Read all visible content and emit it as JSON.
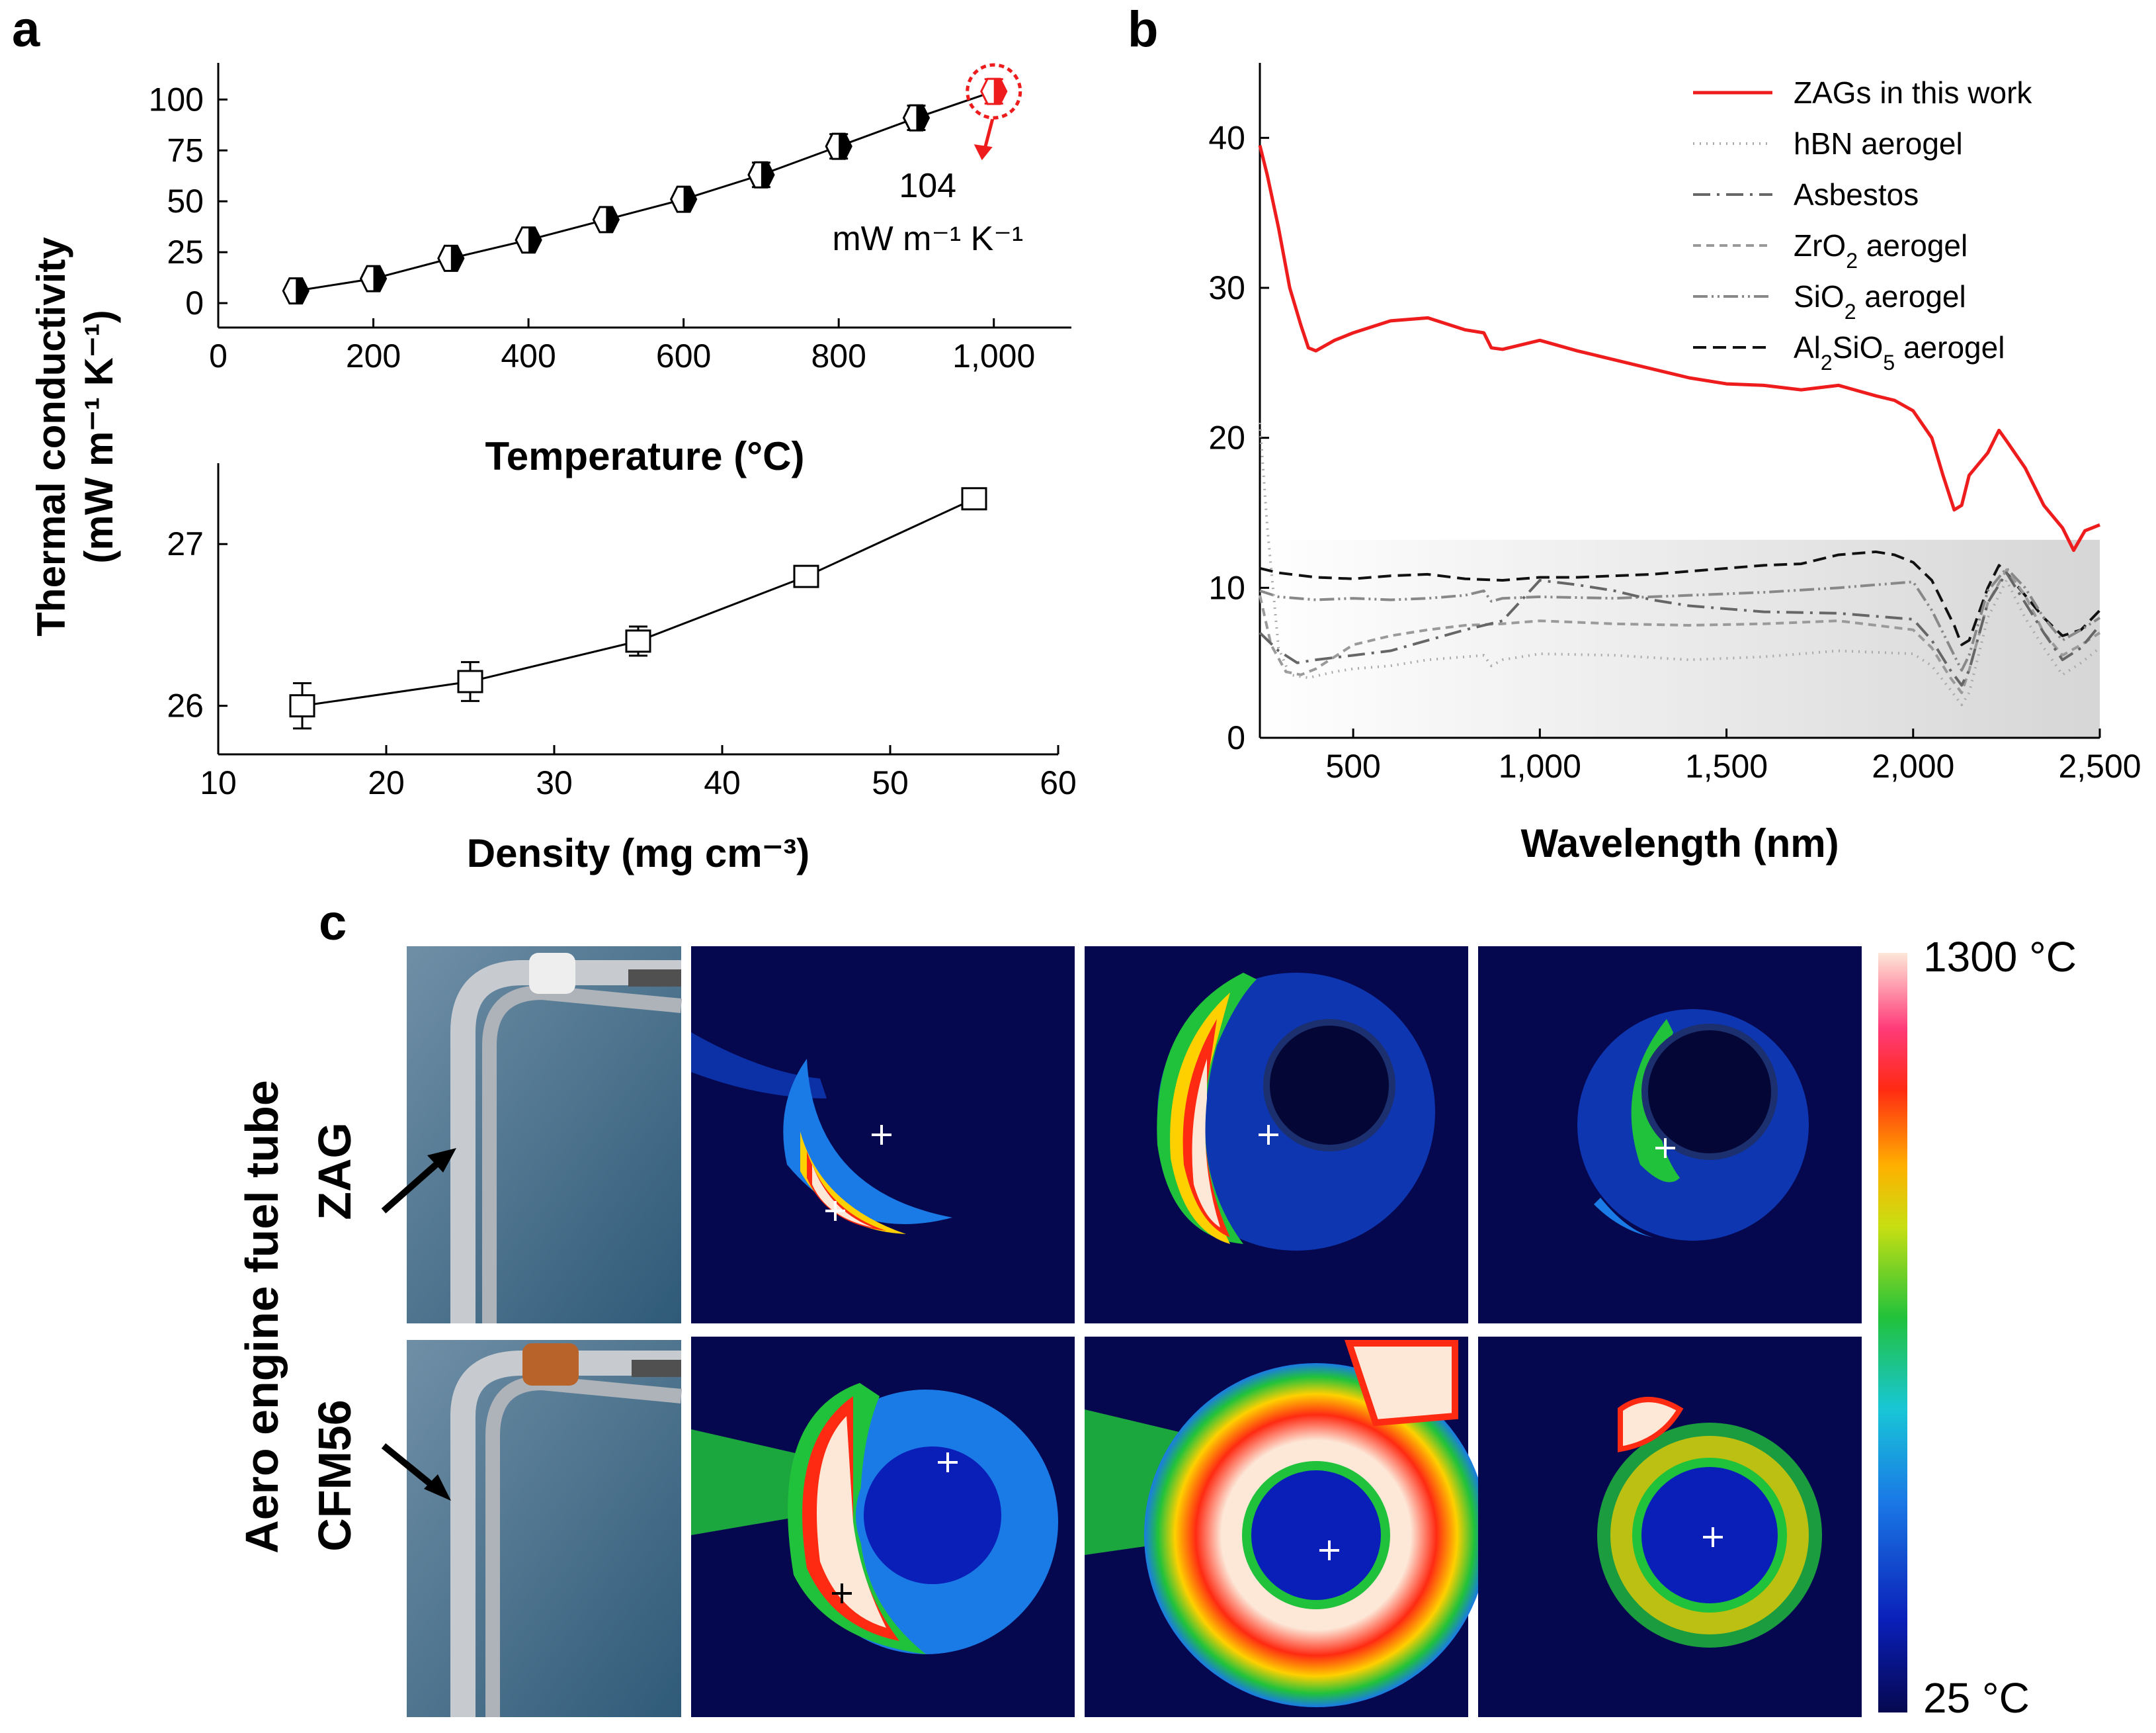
{
  "panels": {
    "a": "a",
    "b": "b",
    "c": "c"
  },
  "shared": {
    "ylabel_line1": "Thermal conductivity",
    "ylabel_line2": "(mW m⁻¹ K⁻¹)"
  },
  "colors": {
    "zag_red": "#ee1c1c",
    "curve_gray": "#666666",
    "ir_dark": "#06084f",
    "shade": "#dcdcdc"
  },
  "chart_data": [
    {
      "id": "a-top",
      "type": "line",
      "title": "",
      "xlabel": "Temperature (°C)",
      "ylabel": "Thermal conductivity (mW m⁻¹ K⁻¹)",
      "xlim": [
        0,
        1100
      ],
      "ylim": [
        -12,
        118
      ],
      "xticks": [
        0,
        200,
        400,
        600,
        800,
        1000
      ],
      "xtick_labels": [
        "0",
        "200",
        "400",
        "600",
        "800",
        "1,000"
      ],
      "yticks": [
        0,
        25,
        50,
        75,
        100
      ],
      "ytick_labels": [
        "0",
        "25",
        "50",
        "75",
        "100"
      ],
      "x": [
        100,
        200,
        300,
        400,
        500,
        600,
        700,
        800,
        900,
        1000
      ],
      "y": [
        6,
        12,
        22,
        31,
        41,
        51,
        63,
        77,
        91,
        104
      ],
      "yerr": [
        3,
        3,
        3,
        3,
        3,
        3,
        6,
        6,
        6,
        6
      ],
      "highlight": {
        "x": 1000,
        "y": 104,
        "value_label": "104",
        "unit_label": "mW m⁻¹ K⁻¹"
      }
    },
    {
      "id": "a-bottom",
      "type": "line",
      "title": "",
      "xlabel": "Density  (mg cm⁻³)",
      "ylabel": "Thermal conductivity (mW m⁻¹ K⁻¹)",
      "xlim": [
        10,
        60
      ],
      "ylim": [
        25.7,
        27.5
      ],
      "xticks": [
        10,
        20,
        30,
        40,
        50,
        60
      ],
      "xtick_labels": [
        "10",
        "20",
        "30",
        "40",
        "50",
        "60"
      ],
      "yticks": [
        26,
        27
      ],
      "ytick_labels": [
        "26",
        "27"
      ],
      "x": [
        15,
        25,
        35,
        45,
        55
      ],
      "y": [
        26.0,
        26.15,
        26.4,
        26.8,
        27.28
      ],
      "yerr": [
        0.14,
        0.12,
        0.09,
        0.06,
        0.06
      ]
    },
    {
      "id": "b",
      "type": "line",
      "title": "",
      "xlabel": "Wavelength (nm)",
      "ylabel": "",
      "xlim": [
        250,
        2500
      ],
      "ylim": [
        0,
        45
      ],
      "xticks": [
        500,
        1000,
        1500,
        2000,
        2500
      ],
      "xtick_labels": [
        "500",
        "1,000",
        "1,500",
        "2,000",
        "2,500"
      ],
      "yticks": [
        0,
        10,
        20,
        30,
        40
      ],
      "ytick_labels": [
        "0",
        "10",
        "20",
        "30",
        "40"
      ],
      "shaded_band": [
        0,
        13.2
      ],
      "series": [
        {
          "name": "ZAGs in this work",
          "legend_main": "ZAGs in this work",
          "legend_sub": "",
          "legend_tail": "",
          "color": "#ee1c1c",
          "dash": "",
          "x": [
            250,
            270,
            300,
            330,
            360,
            380,
            400,
            450,
            500,
            600,
            700,
            800,
            850,
            870,
            900,
            1000,
            1100,
            1200,
            1300,
            1400,
            1500,
            1600,
            1700,
            1800,
            1900,
            1950,
            2000,
            2050,
            2080,
            2110,
            2130,
            2150,
            2200,
            2230,
            2250,
            2300,
            2350,
            2400,
            2430,
            2460,
            2500
          ],
          "y": [
            39.5,
            37.5,
            34,
            30,
            27.5,
            26,
            25.8,
            26.5,
            27,
            27.8,
            28,
            27.2,
            27,
            26,
            25.9,
            26.5,
            25.8,
            25.2,
            24.6,
            24,
            23.6,
            23.5,
            23.2,
            23.5,
            22.8,
            22.5,
            21.8,
            20,
            17.5,
            15.2,
            15.5,
            17.5,
            19,
            20.5,
            19.8,
            18,
            15.5,
            14,
            12.5,
            13.8,
            14.2
          ]
        },
        {
          "name": "hBN aerogel",
          "legend_main": "hBN aerogel",
          "legend_sub": "",
          "legend_tail": "",
          "color": "#aaaaaa",
          "dash": "2 8",
          "x": [
            250,
            270,
            300,
            330,
            380,
            450,
            500,
            600,
            700,
            800,
            850,
            870,
            900,
            1000,
            1200,
            1400,
            1600,
            1800,
            2000,
            2050,
            2100,
            2130,
            2150,
            2200,
            2250,
            2300,
            2350,
            2400,
            2450,
            2500
          ],
          "y": [
            21,
            14,
            6,
            4.2,
            4,
            4.4,
            4.6,
            4.8,
            5.2,
            5.4,
            5.5,
            4.8,
            5.2,
            5.6,
            5.5,
            5.2,
            5.4,
            5.8,
            5.6,
            4.8,
            3.2,
            2.2,
            3,
            8,
            10.5,
            8,
            6,
            4.2,
            5,
            6
          ]
        },
        {
          "name": "Asbestos",
          "legend_main": "Asbestos",
          "legend_sub": "",
          "legend_tail": "",
          "color": "#666666",
          "dash": "26 10 4 10",
          "x": [
            250,
            300,
            350,
            400,
            500,
            600,
            700,
            800,
            900,
            1000,
            1100,
            1200,
            1300,
            1400,
            1600,
            1800,
            2000,
            2050,
            2100,
            2130,
            2150,
            2200,
            2250,
            2300,
            2350,
            2400,
            2450,
            2500
          ],
          "y": [
            7,
            5.8,
            5,
            5.2,
            5.5,
            5.8,
            6.5,
            7.2,
            7.8,
            10.5,
            10.2,
            9.8,
            9.2,
            8.8,
            8.4,
            8.3,
            7.9,
            6.5,
            4.5,
            3.5,
            4.5,
            9,
            11,
            9,
            7,
            5.2,
            6,
            7.5
          ]
        },
        {
          "name": "ZrO2 aerogel",
          "legend_main": "ZrO",
          "legend_sub": "2",
          "legend_tail": " aerogel",
          "color": "#9a9a9a",
          "dash": "12 8",
          "x": [
            250,
            280,
            320,
            360,
            400,
            500,
            600,
            700,
            800,
            900,
            1000,
            1200,
            1400,
            1600,
            1800,
            2000,
            2050,
            2100,
            2130,
            2150,
            2200,
            2250,
            2300,
            2350,
            2400,
            2450,
            2500
          ],
          "y": [
            9.5,
            6.2,
            4.4,
            4.2,
            4.6,
            6.2,
            6.8,
            7.2,
            7.5,
            7.6,
            7.8,
            7.6,
            7.5,
            7.6,
            7.8,
            7.2,
            6,
            4,
            3,
            4.5,
            9,
            11.2,
            9.5,
            7,
            5.5,
            6.2,
            7
          ]
        },
        {
          "name": "SiO2 aerogel",
          "legend_main": "SiO",
          "legend_sub": "2",
          "legend_tail": " aerogel",
          "color": "#888888",
          "dash": "22 6 3 6 3 6",
          "x": [
            250,
            300,
            400,
            500,
            600,
            700,
            800,
            850,
            870,
            900,
            1000,
            1200,
            1400,
            1600,
            1800,
            1900,
            2000,
            2050,
            2100,
            2130,
            2150,
            2200,
            2250,
            2300,
            2350,
            2400,
            2450,
            2500
          ],
          "y": [
            9.8,
            9.4,
            9.2,
            9.3,
            9.2,
            9.3,
            9.5,
            9.8,
            9.1,
            9.3,
            9.4,
            9.3,
            9.5,
            9.7,
            10,
            10.2,
            10.4,
            8.5,
            6,
            4.5,
            5.5,
            9.8,
            11.3,
            10,
            8,
            6.5,
            7.2,
            8
          ]
        },
        {
          "name": "Al2SiO5 aerogel",
          "legend_main": "Al",
          "legend_sub": "2",
          "legend_tail": "SiO",
          "legend_sub2": "5",
          "legend_tail2": " aerogel",
          "color": "#111111",
          "dash": "20 10",
          "x": [
            250,
            300,
            400,
            500,
            600,
            700,
            800,
            900,
            1000,
            1100,
            1200,
            1300,
            1400,
            1500,
            1600,
            1700,
            1800,
            1900,
            1950,
            2000,
            2050,
            2080,
            2110,
            2130,
            2150,
            2200,
            2230,
            2250,
            2300,
            2350,
            2400,
            2450,
            2500
          ],
          "y": [
            11.3,
            11,
            10.7,
            10.6,
            10.8,
            10.9,
            10.6,
            10.5,
            10.7,
            10.7,
            10.8,
            10.9,
            11.1,
            11.3,
            11.5,
            11.6,
            12.2,
            12.4,
            12.2,
            11.7,
            10.5,
            9,
            7.5,
            6.2,
            6.5,
            10,
            11.5,
            11,
            9.5,
            8,
            6.8,
            7.2,
            8.5
          ]
        }
      ]
    }
  ],
  "panel_c": {
    "row_group_label": "Aero engine fuel tube",
    "rows": [
      {
        "label": "ZAG"
      },
      {
        "label": "CFM56"
      }
    ],
    "colorbar": {
      "max_label": "1300 °C",
      "min_label": "25 °C"
    }
  }
}
